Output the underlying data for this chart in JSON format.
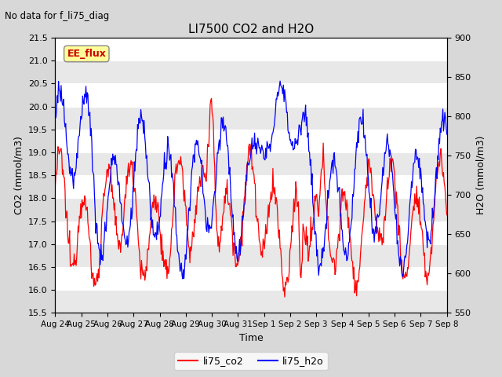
{
  "title": "LI7500 CO2 and H2O",
  "suptitle": "No data for f_li75_diag",
  "xlabel": "Time",
  "ylabel_left": "CO2 (mmol/m3)",
  "ylabel_right": "H2O (mmol/m3)",
  "ylim_left": [
    15.5,
    21.5
  ],
  "ylim_right": [
    550,
    900
  ],
  "yticks_left": [
    15.5,
    16.0,
    16.5,
    17.0,
    17.5,
    18.0,
    18.5,
    19.0,
    19.5,
    20.0,
    20.5,
    21.0,
    21.5
  ],
  "yticks_right": [
    550,
    600,
    650,
    700,
    750,
    800,
    850,
    900
  ],
  "color_co2": "#FF0000",
  "color_h2o": "#0000FF",
  "legend_label_co2": "li75_co2",
  "legend_label_h2o": "li75_h2o",
  "fig_bg_color": "#D8D8D8",
  "plot_bg_color": "#FFFFFF",
  "ee_flux_label": "EE_flux",
  "tick_labels": [
    "Aug 24",
    "Aug 25",
    "Aug 26",
    "Aug 27",
    "Aug 28",
    "Aug 29",
    "Aug 30",
    "Aug 31",
    "Sep 1",
    "Sep 2",
    "Sep 3",
    "Sep 4",
    "Sep 5",
    "Sep 6",
    "Sep 7",
    "Sep 8"
  ],
  "n_points": 600,
  "seed": 12345
}
